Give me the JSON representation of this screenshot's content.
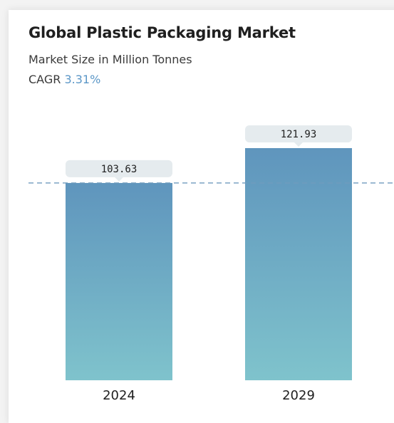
{
  "header": {
    "title": "Global Plastic Packaging Market",
    "subtitle": "Market Size in Million Tonnes",
    "cagr_label": "CAGR",
    "cagr_value": "3.31%"
  },
  "colors": {
    "bar_top": "#5f95bd",
    "bar_bottom": "#7fc3cc",
    "label_box": "#e5ebee",
    "dashed_line": "#6f9bbd",
    "cagr_accent": "#5b97c7"
  },
  "chart_data": {
    "type": "bar",
    "categories": [
      "2024",
      "2029"
    ],
    "values": [
      103.63,
      121.93
    ],
    "value_labels": [
      "103.63",
      "121.93"
    ],
    "title": "Global Plastic Packaging Market",
    "subtitle": "Market Size in Million Tonnes",
    "ylim": [
      0,
      121.93
    ],
    "reference_line": 103.63,
    "grid": false
  }
}
